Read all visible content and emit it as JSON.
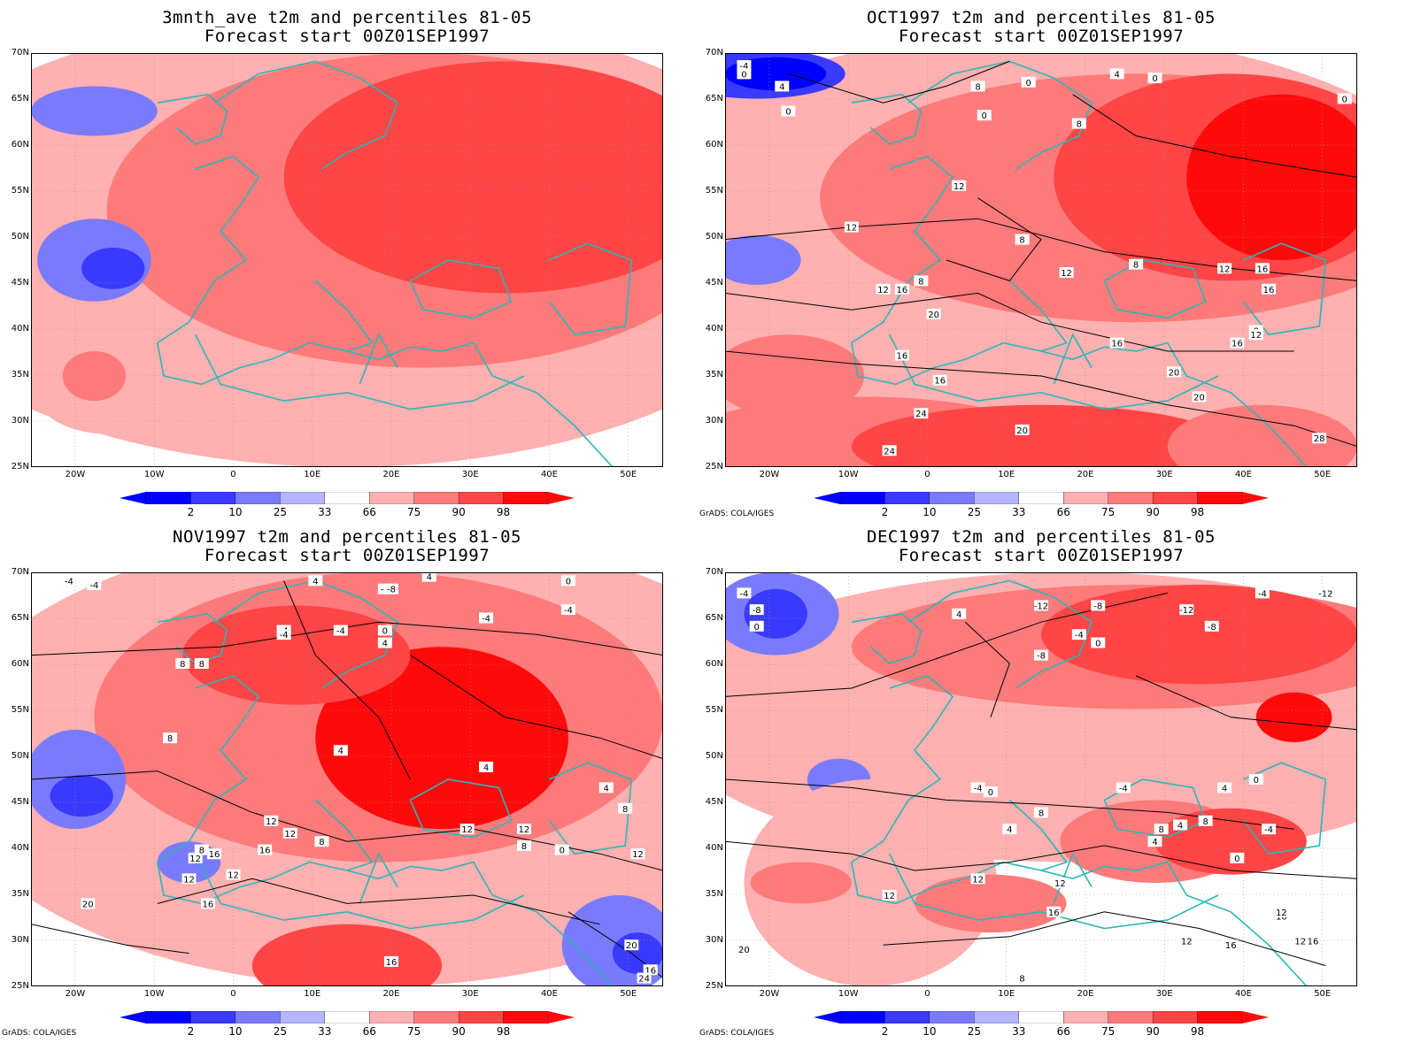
{
  "colors": {
    "coast": "#2ab7b7",
    "contour": "#000000",
    "scale": [
      "#0000ff",
      "#3a3aff",
      "#7a7aff",
      "#b4b4ff",
      "#ffffff",
      "#ffb0b0",
      "#ff7a7a",
      "#ff4545",
      "#ff0a0a"
    ]
  },
  "colorbar": {
    "labels": [
      "2",
      "10",
      "25",
      "33",
      "66",
      "75",
      "90",
      "98"
    ]
  },
  "panels": [
    {
      "title_line1": "3mnth_ave t2m and percentiles 81-05",
      "title_line2": "Forecast start 00Z01SEP1997",
      "lat_labels": [
        "70N",
        "65N",
        "60N",
        "55N",
        "50N",
        "45N",
        "40N",
        "35N",
        "30N",
        "25N"
      ],
      "lon_labels": [
        "20W",
        "10W",
        "0",
        "10E",
        "20E",
        "30E",
        "40E",
        "50E"
      ],
      "credit": "",
      "contour_labels": []
    },
    {
      "title_line1": "OCT1997 t2m and percentiles 81-05",
      "title_line2": "Forecast start 00Z01SEP1997",
      "lat_labels": [
        "70N",
        "65N",
        "60N",
        "55N",
        "50N",
        "45N",
        "40N",
        "35N",
        "30N",
        "25N"
      ],
      "lon_labels": [
        "20W",
        "10W",
        "0",
        "10E",
        "20E",
        "30E",
        "40E",
        "50E"
      ],
      "credit": "GrADS: COLA/IGES",
      "contour_labels": [
        "-4",
        "0",
        "4",
        "0",
        "8",
        "0",
        "4",
        "0",
        "8",
        "0",
        "12",
        "8",
        "12",
        "8",
        "8",
        "16",
        "12",
        "12",
        "16",
        "20",
        "16",
        "16",
        "12",
        "16",
        "8",
        "12",
        "16",
        "20",
        "20",
        "24",
        "28",
        "20",
        "16",
        "24",
        "0"
      ]
    },
    {
      "title_line1": "NOV1997 t2m and percentiles 81-05",
      "title_line2": "Forecast start 00Z01SEP1997",
      "lat_labels": [
        "70N",
        "65N",
        "60N",
        "55N",
        "50N",
        "45N",
        "40N",
        "35N",
        "30N",
        "25N"
      ],
      "lon_labels": [
        "20W",
        "10W",
        "0",
        "10E",
        "20E",
        "30E",
        "40E",
        "50E"
      ],
      "credit": "GrADS: COLA/IGES",
      "contour_labels": [
        "-4",
        "-4",
        "4",
        "4",
        "-8",
        "0",
        "-4",
        "-4",
        "-4",
        "-8",
        "-4",
        "0",
        "4",
        "8",
        "8",
        "8",
        "-4",
        "4",
        "4",
        "12",
        "4",
        "8",
        "12",
        "12",
        "8",
        "16",
        "12",
        "12",
        "8",
        "0",
        "12",
        "16",
        "12",
        "12",
        "20",
        "16",
        "20",
        "16",
        "24",
        "16",
        "8"
      ]
    },
    {
      "title_line1": "DEC1997 t2m and percentiles 81-05",
      "title_line2": "Forecast start 00Z01SEP1997",
      "lat_labels": [
        "70N",
        "65N",
        "60N",
        "55N",
        "50N",
        "45N",
        "40N",
        "35N",
        "30N",
        "25N"
      ],
      "lon_labels": [
        "20W",
        "10W",
        "0",
        "10E",
        "20E",
        "30E",
        "40E",
        "50E"
      ],
      "credit": "GrADS: COLA/IGES",
      "contour_labels": [
        "-4",
        "-8",
        "0",
        "4",
        "-12",
        "-8",
        "-4",
        "0",
        "-8",
        "-12",
        "-8",
        "-4",
        "-12",
        "-4",
        "0",
        "0",
        "-4",
        "4",
        "8",
        "-4",
        "8",
        "4",
        "4",
        "0",
        "8",
        "4",
        "12",
        "12",
        "16",
        "16",
        "12",
        "12",
        "16",
        "8",
        "20",
        "12",
        "12",
        "16"
      ]
    }
  ]
}
